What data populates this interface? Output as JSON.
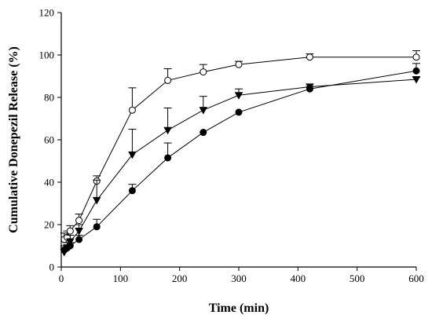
{
  "chart_data": {
    "type": "line",
    "xlabel": "Time (min)",
    "ylabel": "Cumulative Donepezil Release (%)",
    "xlim": [
      0,
      600
    ],
    "ylim": [
      0,
      120
    ],
    "xticks": [
      0,
      100,
      200,
      300,
      400,
      500,
      600
    ],
    "yticks": [
      0,
      20,
      40,
      60,
      80,
      100,
      120
    ],
    "grid": false,
    "x": [
      5,
      10,
      15,
      30,
      60,
      120,
      180,
      240,
      300,
      420,
      600
    ],
    "series": [
      {
        "marker": "circle-open",
        "values": [
          13,
          14,
          17,
          22,
          40.5,
          74,
          88,
          92,
          95.5,
          99,
          99
        ],
        "errors": [
          3,
          3,
          2.5,
          3,
          2.5,
          10.5,
          5.5,
          3.5,
          1.5,
          1.5,
          3
        ]
      },
      {
        "marker": "triangle-down-filled",
        "values": [
          7,
          9,
          12,
          17,
          31.5,
          53,
          64.5,
          74,
          81,
          85,
          88.5
        ],
        "errors": [
          2,
          2.5,
          3,
          3,
          9.5,
          12,
          10.5,
          6.5,
          3,
          0,
          1
        ]
      },
      {
        "marker": "circle-filled",
        "values": [
          8,
          9,
          10,
          13,
          19,
          36,
          51.5,
          63.5,
          73,
          84,
          92.5
        ],
        "errors": [
          2,
          1.5,
          1.5,
          2,
          3.5,
          3,
          7,
          0,
          0,
          1,
          3.5
        ]
      }
    ]
  }
}
